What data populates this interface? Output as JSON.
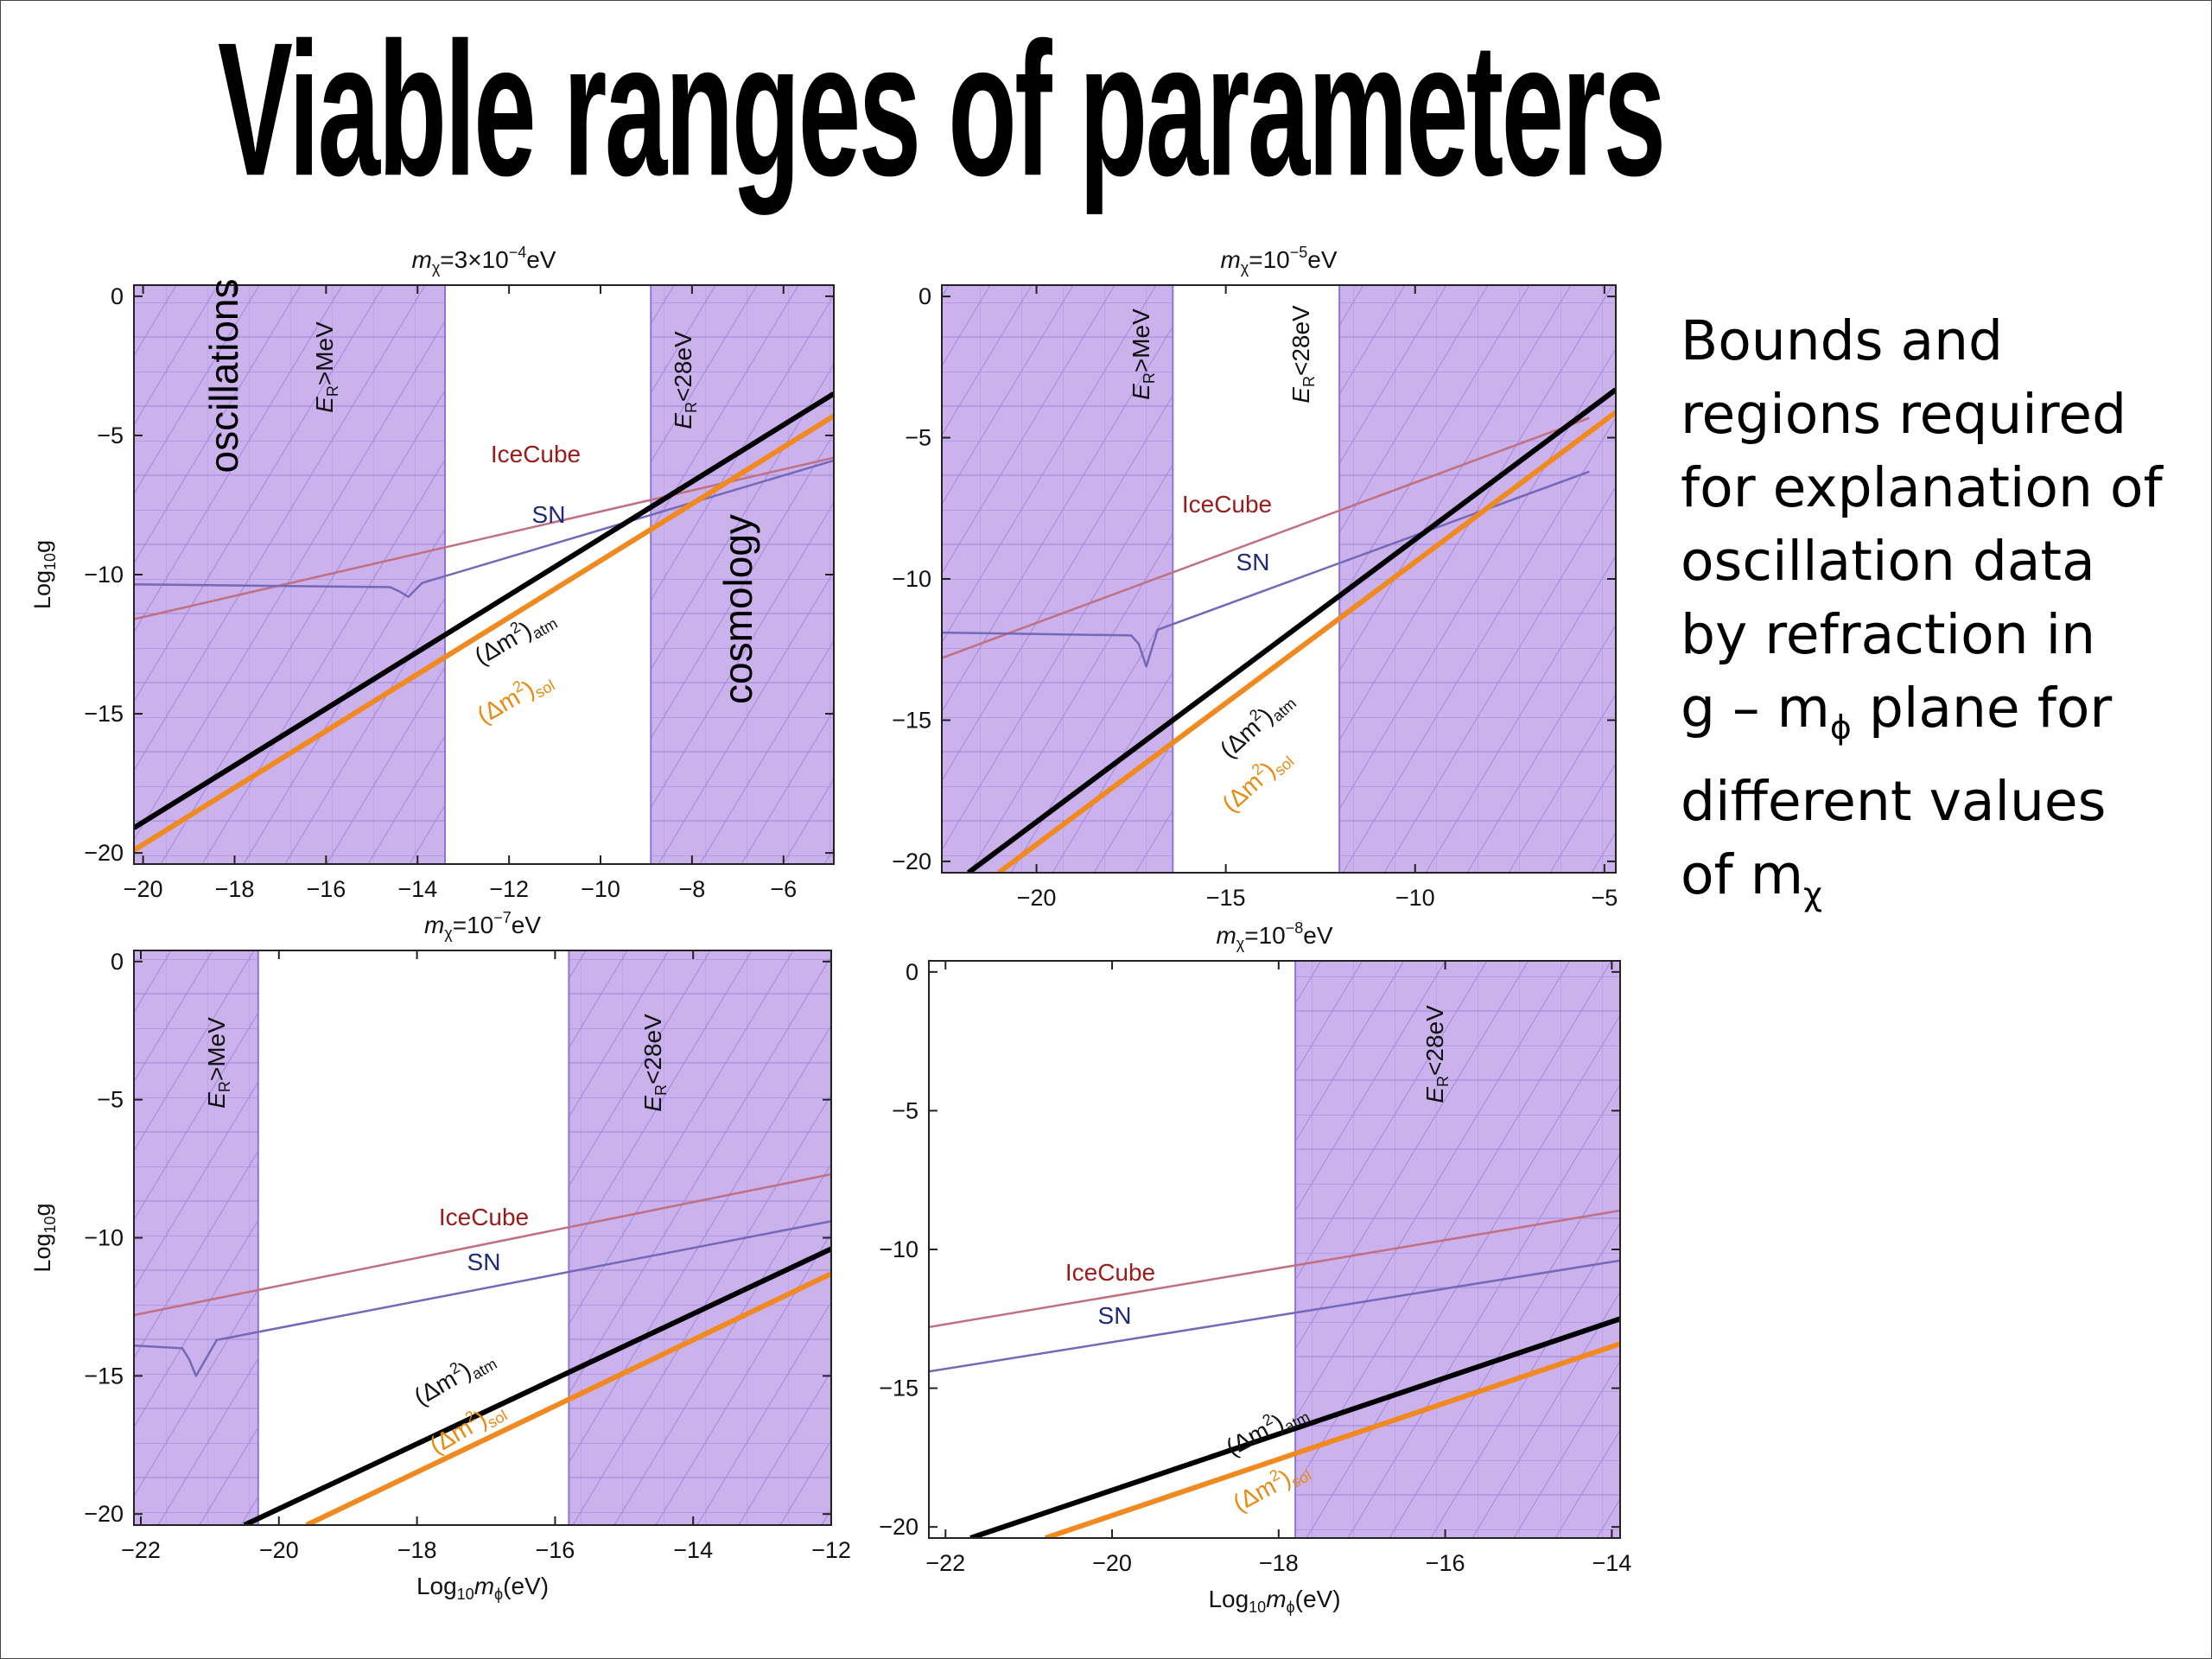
{
  "slide_title": "Viable ranges of parameters",
  "side_text": {
    "line1": "Bounds and",
    "line2": "regions required",
    "line3": "for explanation of",
    "line4": "oscillation data",
    "line5": "by refraction in",
    "line6_a": "g – m",
    "line6_sub": "ϕ",
    "line6_b": " plane for",
    "line7": "different values",
    "line8_a": "of m",
    "line8_sub": "χ"
  },
  "colors": {
    "excluded_region": "#cbb2ec",
    "hatch_line": "#8e76d6",
    "icecube": "#c07080",
    "sn": "#7468b8",
    "atm": "#000000",
    "sol": "#f08a20",
    "icecube_label": "#9b1b1b",
    "sn_label": "#1f2a78",
    "sol_label": "#e88a10"
  },
  "chart_data": [
    {
      "type": "line",
      "title_prefix": "m",
      "title_sub": "χ",
      "title_value": "=3×10",
      "title_sup": "−4",
      "title_unit": "eV",
      "ylabel_prefix": "Log",
      "ylabel_sub": "10",
      "ylabel_suffix": "g",
      "xlabel": "",
      "xlim": [
        -20.2,
        -4.9
      ],
      "ylim": [
        -20.4,
        0.4
      ],
      "xticks": [
        "−20",
        "−18",
        "−16",
        "−14",
        "−12",
        "−10",
        "−8",
        "−6"
      ],
      "yticks": [
        "0",
        "−5",
        "−10",
        "−15",
        "−20"
      ],
      "regions": [
        {
          "x0": -20.2,
          "x1": -13.4,
          "label": "E_R>MeV"
        },
        {
          "x0": -8.9,
          "x1": -4.9,
          "label": "E_R<28eV"
        }
      ],
      "region_labels": [
        "oscillations",
        "cosmology"
      ],
      "series": [
        {
          "name": "IceCube",
          "x": [
            -20.2,
            -4.9
          ],
          "y": [
            -11.6,
            -5.8
          ]
        },
        {
          "name": "SN",
          "x": [
            -20.2,
            -14.6,
            -14.4,
            -14.2,
            -13.9,
            -4.9
          ],
          "y": [
            -10.35,
            -10.45,
            -10.6,
            -10.8,
            -10.3,
            -5.9
          ]
        },
        {
          "name": "(Δm²)_atm",
          "x": [
            -20.2,
            -4.9
          ],
          "y": [
            -19.1,
            -3.5
          ]
        },
        {
          "name": "(Δm²)_sol",
          "x": [
            -20.2,
            -4.9
          ],
          "y": [
            -19.9,
            -4.3
          ]
        }
      ],
      "labels": {
        "icecube": "IceCube",
        "sn": "SN",
        "atm": "(Δm",
        "atm_sup": "2",
        "atm_close": ")",
        "atm_sub": "atm",
        "sol": "(Δm",
        "sol_sup": "2",
        "sol_close": ")",
        "sol_sub": "sol",
        "high": "E",
        "high_sub": "R",
        "high_op": ">MeV",
        "low": "E",
        "low_sub": "R",
        "low_op": "<28eV",
        "oscillations": "oscillations",
        "cosmology": "cosmology"
      }
    },
    {
      "type": "line",
      "title_prefix": "m",
      "title_sub": "χ",
      "title_value": "=10",
      "title_sup": "−5",
      "title_unit": "eV",
      "ylabel_prefix": "",
      "ylabel_sub": "",
      "ylabel_suffix": "",
      "xlabel": "",
      "xlim": [
        -22.5,
        -4.7
      ],
      "ylim": [
        -20.4,
        0.4
      ],
      "xticks": [
        "−20",
        "−15",
        "−10",
        "−5"
      ],
      "yticks": [
        "0",
        "−5",
        "−10",
        "−15",
        "−20"
      ],
      "regions": [
        {
          "x0": -22.5,
          "x1": -16.4,
          "label": "E_R>MeV"
        },
        {
          "x0": -12.0,
          "x1": -4.7,
          "label": "E_R<28eV"
        }
      ],
      "series": [
        {
          "name": "IceCube",
          "x": [
            -22.5,
            -5.4
          ],
          "y": [
            -12.8,
            -4.3
          ]
        },
        {
          "name": "SN",
          "x": [
            -22.5,
            -17.5,
            -17.3,
            -17.1,
            -16.8,
            -5.4
          ],
          "y": [
            -11.9,
            -12.0,
            -12.3,
            -13.1,
            -11.8,
            -6.2
          ]
        },
        {
          "name": "(Δm²)_atm",
          "x": [
            -21.8,
            -4.7
          ],
          "y": [
            -20.4,
            -3.3
          ]
        },
        {
          "name": "(Δm²)_sol",
          "x": [
            -21.0,
            -4.7
          ],
          "y": [
            -20.4,
            -4.1
          ]
        }
      ],
      "labels": {
        "icecube": "IceCube",
        "sn": "SN",
        "atm": "(Δm",
        "atm_sup": "2",
        "atm_close": ")",
        "atm_sub": "atm",
        "sol": "(Δm",
        "sol_sup": "2",
        "sol_close": ")",
        "sol_sub": "sol",
        "high": "E",
        "high_sub": "R",
        "high_op": ">MeV",
        "low": "E",
        "low_sub": "R",
        "low_op": "<28eV"
      }
    },
    {
      "type": "line",
      "title_prefix": "m",
      "title_sub": "χ",
      "title_value": "=10",
      "title_sup": "−7",
      "title_unit": "eV",
      "ylabel_prefix": "Log",
      "ylabel_sub": "10",
      "ylabel_suffix": "g",
      "xlabel_prefix": "Log",
      "xlabel_sub": "10",
      "xlabel_var": "m",
      "xlabel_var_sub": "ϕ",
      "xlabel_unit": "(eV)",
      "xlim": [
        -22.1,
        -12.0
      ],
      "ylim": [
        -20.4,
        0.4
      ],
      "xticks": [
        "−22",
        "−20",
        "−18",
        "−16",
        "−14",
        "−12"
      ],
      "yticks": [
        "0",
        "−5",
        "−10",
        "−15",
        "−20"
      ],
      "regions": [
        {
          "x0": -22.1,
          "x1": -20.3,
          "label": "E_R>MeV"
        },
        {
          "x0": -15.8,
          "x1": -12.0,
          "label": "E_R<28eV"
        }
      ],
      "series": [
        {
          "name": "IceCube",
          "x": [
            -22.1,
            -12.0
          ],
          "y": [
            -12.8,
            -7.7
          ]
        },
        {
          "name": "SN",
          "x": [
            -22.1,
            -21.4,
            -21.3,
            -21.2,
            -20.9,
            -12.0
          ],
          "y": [
            -13.9,
            -14.0,
            -14.4,
            -15.0,
            -13.7,
            -9.4
          ]
        },
        {
          "name": "(Δm²)_atm",
          "x": [
            -20.5,
            -12.0
          ],
          "y": [
            -20.4,
            -10.4
          ]
        },
        {
          "name": "(Δm²)_sol",
          "x": [
            -19.6,
            -12.0
          ],
          "y": [
            -20.4,
            -11.3
          ]
        }
      ],
      "labels": {
        "icecube": "IceCube",
        "sn": "SN",
        "atm": "(Δm",
        "atm_sup": "2",
        "atm_close": ")",
        "atm_sub": "atm",
        "sol": "(Δm",
        "sol_sup": "2",
        "sol_close": ")",
        "sol_sub": "sol",
        "high": "E",
        "high_sub": "R",
        "high_op": ">MeV",
        "low": "E",
        "low_sub": "R",
        "low_op": "<28eV"
      }
    },
    {
      "type": "line",
      "title_prefix": "m",
      "title_sub": "χ",
      "title_value": "=10",
      "title_sup": "−8",
      "title_unit": "eV",
      "ylabel_prefix": "",
      "ylabel_sub": "",
      "ylabel_suffix": "",
      "xlabel_prefix": "Log",
      "xlabel_sub": "10",
      "xlabel_var": "m",
      "xlabel_var_sub": "ϕ",
      "xlabel_unit": "(eV)",
      "xlim": [
        -22.2,
        -13.9
      ],
      "ylim": [
        -20.4,
        0.4
      ],
      "xticks": [
        "−22",
        "−20",
        "−18",
        "−16",
        "−14"
      ],
      "yticks": [
        "0",
        "−5",
        "−10",
        "−15",
        "−20"
      ],
      "regions": [
        {
          "x0": -17.8,
          "x1": -13.9,
          "label": "E_R<28eV"
        }
      ],
      "series": [
        {
          "name": "IceCube",
          "x": [
            -22.2,
            -13.9
          ],
          "y": [
            -12.8,
            -8.6
          ]
        },
        {
          "name": "SN",
          "x": [
            -22.2,
            -13.9
          ],
          "y": [
            -14.4,
            -10.4
          ]
        },
        {
          "name": "(Δm²)_atm",
          "x": [
            -21.7,
            -13.9
          ],
          "y": [
            -20.4,
            -12.5
          ]
        },
        {
          "name": "(Δm²)_sol",
          "x": [
            -20.8,
            -13.9
          ],
          "y": [
            -20.4,
            -13.4
          ]
        }
      ],
      "labels": {
        "icecube": "IceCube",
        "sn": "SN",
        "atm": "(Δm",
        "atm_sup": "2",
        "atm_close": ")",
        "atm_sub": "atm",
        "sol": "(Δm",
        "sol_sup": "2",
        "sol_close": ")",
        "sol_sub": "sol",
        "low": "E",
        "low_sub": "R",
        "low_op": "<28eV"
      }
    }
  ]
}
